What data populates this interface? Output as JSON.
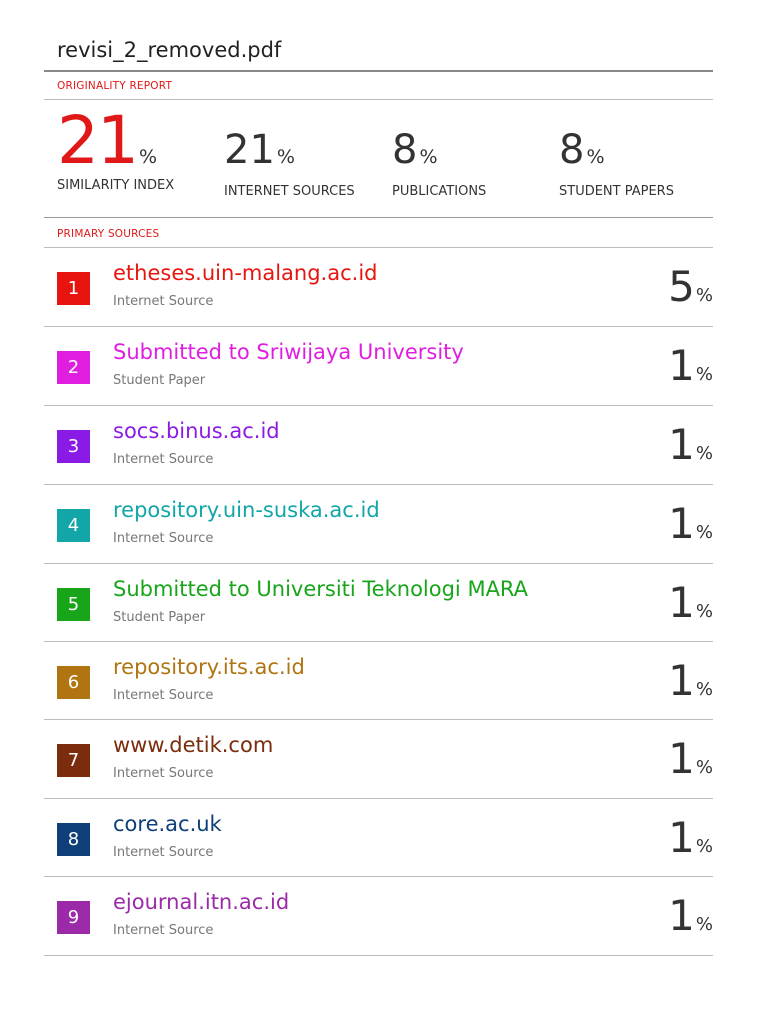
{
  "document": {
    "title": "revisi_2_removed.pdf"
  },
  "originality_report": {
    "label": "ORIGINALITY REPORT",
    "stats": [
      {
        "value": "21",
        "unit": "%",
        "label": "SIMILARITY INDEX"
      },
      {
        "value": "21",
        "unit": "%",
        "label": "INTERNET SOURCES"
      },
      {
        "value": "8",
        "unit": "%",
        "label": "PUBLICATIONS"
      },
      {
        "value": "8",
        "unit": "%",
        "label": "STUDENT PAPERS"
      }
    ]
  },
  "primary_sources": {
    "label": "PRIMARY SOURCES",
    "items": [
      {
        "rank": "1",
        "name": "etheses.uin-malang.ac.id",
        "type": "Internet Source",
        "value": "5",
        "unit": "%",
        "color": "#e8140f"
      },
      {
        "rank": "2",
        "name": "Submitted to Sriwijaya University",
        "type": "Student Paper",
        "value": "1",
        "unit": "%",
        "color": "#e01ee0"
      },
      {
        "rank": "3",
        "name": "socs.binus.ac.id",
        "type": "Internet Source",
        "value": "1",
        "unit": "%",
        "color": "#8a1be6"
      },
      {
        "rank": "4",
        "name": "repository.uin-suska.ac.id",
        "type": "Internet Source",
        "value": "1",
        "unit": "%",
        "color": "#13a6a8"
      },
      {
        "rank": "5",
        "name": "Submitted to Universiti Teknologi MARA",
        "type": "Student Paper",
        "value": "1",
        "unit": "%",
        "color": "#18a51a"
      },
      {
        "rank": "6",
        "name": "repository.its.ac.id",
        "type": "Internet Source",
        "value": "1",
        "unit": "%",
        "color": "#b07410"
      },
      {
        "rank": "7",
        "name": "www.detik.com",
        "type": "Internet Source",
        "value": "1",
        "unit": "%",
        "color": "#7a2c0c"
      },
      {
        "rank": "8",
        "name": "core.ac.uk",
        "type": "Internet Source",
        "value": "1",
        "unit": "%",
        "color": "#0f3f78"
      },
      {
        "rank": "9",
        "name": "ejournal.itn.ac.id",
        "type": "Internet Source",
        "value": "1",
        "unit": "%",
        "color": "#9a2aa8"
      }
    ]
  }
}
